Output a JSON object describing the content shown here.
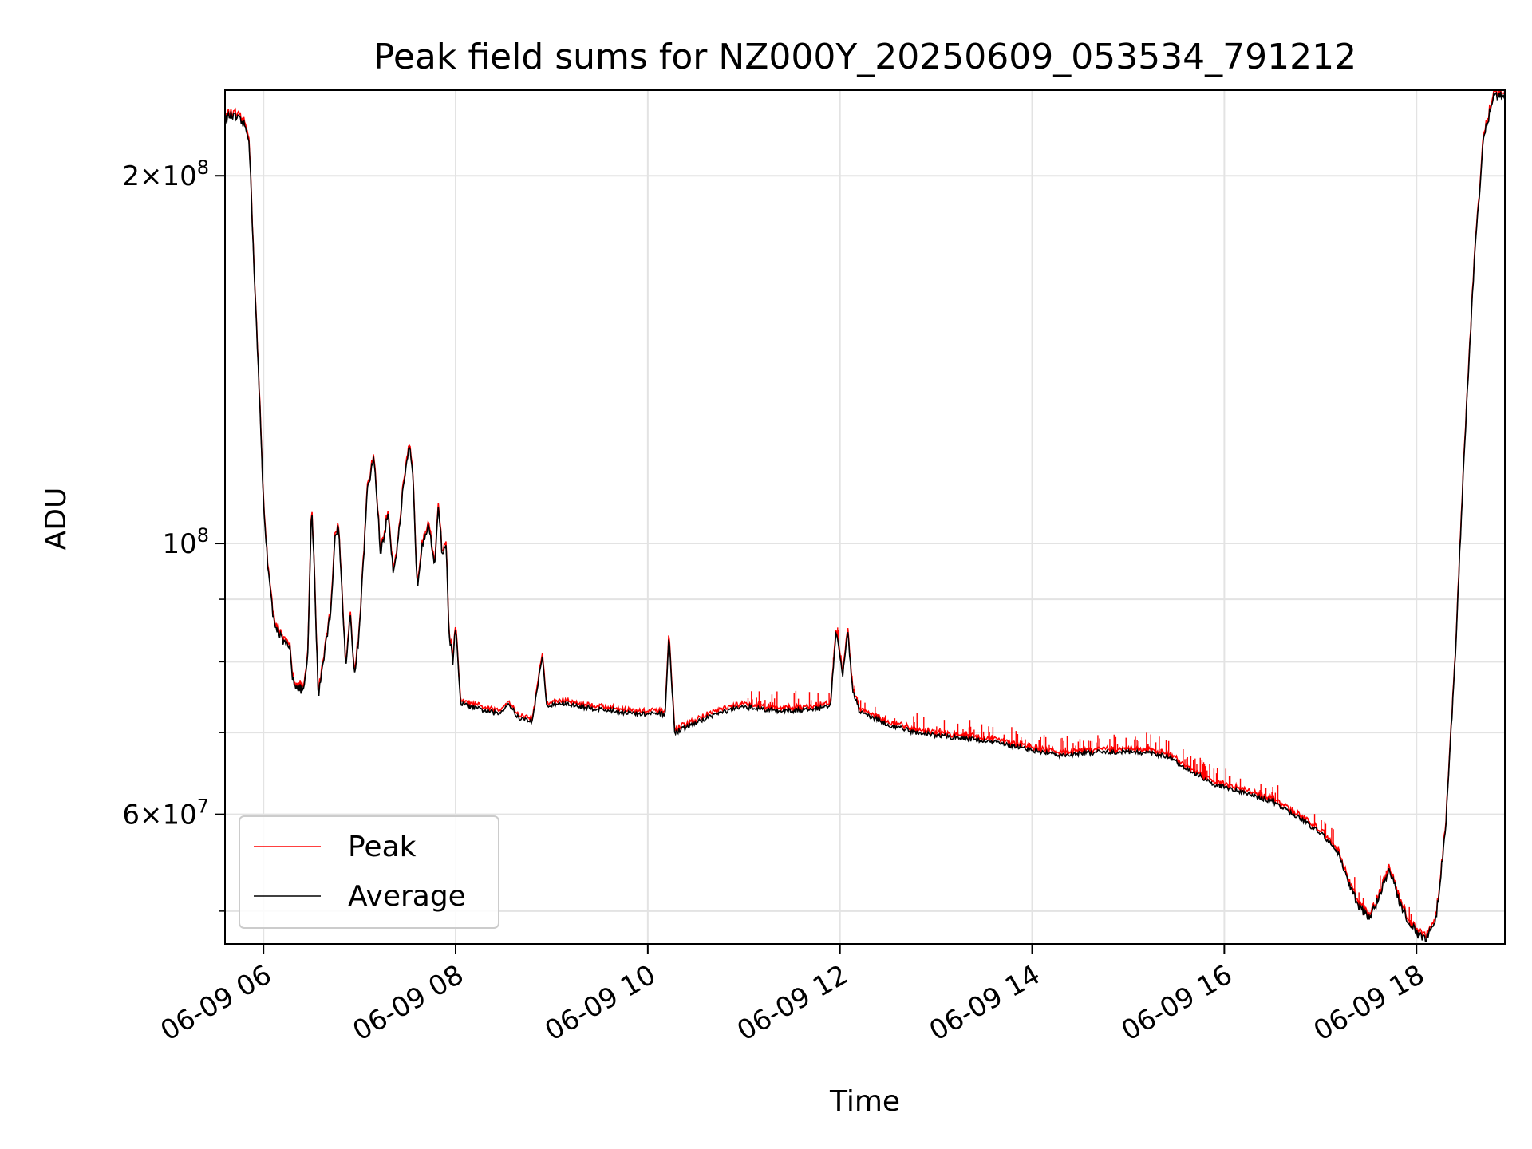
{
  "chart_data": {
    "type": "line",
    "title": "Peak field sums for NZ000Y_20250609_053534_791212",
    "xlabel": "Time",
    "ylabel": "ADU",
    "yscale": "log",
    "ylim": [
      47000000,
      235000000
    ],
    "xlim_hours": [
      5.6,
      18.92
    ],
    "grid": true,
    "legend_position": "lower-left",
    "x_ticks": [
      {
        "h": 6,
        "label": "06-09 06"
      },
      {
        "h": 8,
        "label": "06-09 08"
      },
      {
        "h": 10,
        "label": "06-09 10"
      },
      {
        "h": 12,
        "label": "06-09 12"
      },
      {
        "h": 14,
        "label": "06-09 14"
      },
      {
        "h": 16,
        "label": "06-09 16"
      },
      {
        "h": 18,
        "label": "06-09 18"
      }
    ],
    "y_ticks": [
      {
        "value": 200000000,
        "base": "2×10",
        "exp": "8"
      },
      {
        "value": 100000000,
        "base": "10",
        "exp": "8"
      },
      {
        "value": 60000000,
        "base": "6×10",
        "exp": "7"
      }
    ],
    "y_minor_ticks": [
      50000000,
      70000000,
      80000000,
      90000000
    ],
    "series": [
      {
        "name": "Peak",
        "color": "#ff0000"
      },
      {
        "name": "Average",
        "color": "#000000"
      }
    ],
    "average_points": [
      [
        5.6,
        222000000
      ],
      [
        5.65,
        224000000
      ],
      [
        5.72,
        223000000
      ],
      [
        5.8,
        220000000
      ],
      [
        5.85,
        215000000
      ],
      [
        5.9,
        170000000
      ],
      [
        5.97,
        125000000
      ],
      [
        6.0,
        108000000
      ],
      [
        6.05,
        95000000
      ],
      [
        6.1,
        87000000
      ],
      [
        6.2,
        83000000
      ],
      [
        6.28,
        82000000
      ],
      [
        6.3,
        78000000
      ],
      [
        6.35,
        76000000
      ],
      [
        6.42,
        76000000
      ],
      [
        6.46,
        80000000
      ],
      [
        6.5,
        107000000
      ],
      [
        6.53,
        95000000
      ],
      [
        6.57,
        75000000
      ],
      [
        6.62,
        80000000
      ],
      [
        6.7,
        88000000
      ],
      [
        6.74,
        100000000
      ],
      [
        6.78,
        104000000
      ],
      [
        6.82,
        90000000
      ],
      [
        6.86,
        79000000
      ],
      [
        6.9,
        88000000
      ],
      [
        6.95,
        78000000
      ],
      [
        7.0,
        85000000
      ],
      [
        7.08,
        110000000
      ],
      [
        7.15,
        118000000
      ],
      [
        7.22,
        98000000
      ],
      [
        7.3,
        106000000
      ],
      [
        7.35,
        95000000
      ],
      [
        7.4,
        100000000
      ],
      [
        7.45,
        110000000
      ],
      [
        7.52,
        120000000
      ],
      [
        7.56,
        112000000
      ],
      [
        7.6,
        92000000
      ],
      [
        7.65,
        100000000
      ],
      [
        7.72,
        104000000
      ],
      [
        7.78,
        95000000
      ],
      [
        7.82,
        108000000
      ],
      [
        7.86,
        98000000
      ],
      [
        7.9,
        100000000
      ],
      [
        7.93,
        85000000
      ],
      [
        7.97,
        80000000
      ],
      [
        8.0,
        86000000
      ],
      [
        8.05,
        74000000
      ],
      [
        8.15,
        73500000
      ],
      [
        8.3,
        73000000
      ],
      [
        8.45,
        72500000
      ],
      [
        8.55,
        74000000
      ],
      [
        8.65,
        72000000
      ],
      [
        8.8,
        71500000
      ],
      [
        8.9,
        81000000
      ],
      [
        8.95,
        73500000
      ],
      [
        9.1,
        74000000
      ],
      [
        9.3,
        73500000
      ],
      [
        9.6,
        73000000
      ],
      [
        9.9,
        72500000
      ],
      [
        10.18,
        72500000
      ],
      [
        10.22,
        84000000
      ],
      [
        10.28,
        70000000
      ],
      [
        10.45,
        71000000
      ],
      [
        10.7,
        72500000
      ],
      [
        11.0,
        73500000
      ],
      [
        11.3,
        73000000
      ],
      [
        11.6,
        73000000
      ],
      [
        11.9,
        73500000
      ],
      [
        11.96,
        85000000
      ],
      [
        12.03,
        78000000
      ],
      [
        12.08,
        85000000
      ],
      [
        12.13,
        76000000
      ],
      [
        12.2,
        73000000
      ],
      [
        12.5,
        71000000
      ],
      [
        12.8,
        70000000
      ],
      [
        13.1,
        69500000
      ],
      [
        13.5,
        69000000
      ],
      [
        13.9,
        68000000
      ],
      [
        14.3,
        67000000
      ],
      [
        14.7,
        67500000
      ],
      [
        15.1,
        67500000
      ],
      [
        15.4,
        67000000
      ],
      [
        15.6,
        65500000
      ],
      [
        15.9,
        63500000
      ],
      [
        16.2,
        62500000
      ],
      [
        16.5,
        61500000
      ],
      [
        16.8,
        59500000
      ],
      [
        17.05,
        57500000
      ],
      [
        17.2,
        55500000
      ],
      [
        17.3,
        52500000
      ],
      [
        17.4,
        50500000
      ],
      [
        17.5,
        49500000
      ],
      [
        17.6,
        51000000
      ],
      [
        17.72,
        54000000
      ],
      [
        17.82,
        51000000
      ],
      [
        17.92,
        49000000
      ],
      [
        18.0,
        48000000
      ],
      [
        18.1,
        47400000
      ],
      [
        18.2,
        49000000
      ],
      [
        18.3,
        58000000
      ],
      [
        18.4,
        80000000
      ],
      [
        18.5,
        120000000
      ],
      [
        18.6,
        170000000
      ],
      [
        18.7,
        215000000
      ],
      [
        18.8,
        232000000
      ],
      [
        18.92,
        234000000
      ]
    ]
  }
}
